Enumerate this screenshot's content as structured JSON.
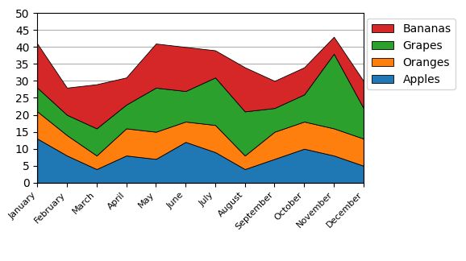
{
  "chart_data": {
    "type": "area",
    "stacked": true,
    "categories": [
      "January",
      "February",
      "March",
      "April",
      "May",
      "June",
      "July",
      "August",
      "September",
      "October",
      "November",
      "December"
    ],
    "series": [
      {
        "name": "Apples",
        "values": [
          13,
          8,
          4,
          8,
          7,
          12,
          9,
          4,
          7,
          10,
          8,
          5
        ]
      },
      {
        "name": "Oranges",
        "values": [
          8,
          6,
          4,
          8,
          8,
          6,
          8,
          4,
          8,
          8,
          8,
          8
        ]
      },
      {
        "name": "Grapes",
        "values": [
          7,
          6,
          8,
          7,
          13,
          9,
          14,
          13,
          7,
          8,
          22,
          9
        ]
      },
      {
        "name": "Bananas",
        "values": [
          13,
          8,
          13,
          8,
          13,
          13,
          8,
          13,
          8,
          8,
          5,
          8
        ]
      }
    ],
    "ylim": [
      0,
      50
    ],
    "yticks": [
      0,
      5,
      10,
      15,
      20,
      25,
      30,
      35,
      40,
      45,
      50
    ],
    "grid": true,
    "legend": "upper right"
  }
}
